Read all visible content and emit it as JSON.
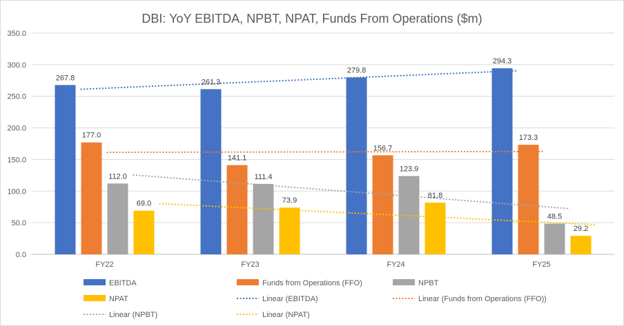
{
  "chart_data": {
    "type": "bar",
    "title": "DBI: YoY EBITDA, NPBT, NPAT, Funds From Operations ($m)",
    "categories": [
      "FY22",
      "FY23",
      "FY24",
      "FY25"
    ],
    "ylim": [
      0,
      350
    ],
    "yticks": [
      "0.0",
      "50.0",
      "100.0",
      "150.0",
      "200.0",
      "250.0",
      "300.0",
      "350.0"
    ],
    "grid": true,
    "legend_position": "bottom",
    "series": [
      {
        "name": "EBITDA",
        "color": "#4472C4",
        "values": [
          267.8,
          261.3,
          279.8,
          294.3
        ],
        "labels": [
          "267.8",
          "261.3",
          "279.8",
          "294.3"
        ]
      },
      {
        "name": "Funds from Operations (FFO)",
        "color": "#ED7D31",
        "values": [
          177.0,
          141.1,
          156.7,
          173.3
        ],
        "labels": [
          "177.0",
          "141.1",
          "156.7",
          "173.3"
        ]
      },
      {
        "name": "NPBT",
        "color": "#A5A5A5",
        "values": [
          112.0,
          111.4,
          123.9,
          48.5
        ],
        "labels": [
          "112.0",
          "111.4",
          "123.9",
          "48.5"
        ]
      },
      {
        "name": "NPAT",
        "color": "#FFC000",
        "values": [
          69.0,
          73.9,
          81.8,
          29.2
        ],
        "labels": [
          "69.0",
          "73.9",
          "81.8",
          "29.2"
        ]
      }
    ],
    "trendlines": [
      {
        "name": "Linear (EBITDA)",
        "series": 0,
        "color": "#4472C4"
      },
      {
        "name": "Linear (Funds from Operations (FFO))",
        "series": 1,
        "color": "#ED7D31"
      },
      {
        "name": "Linear (NPBT)",
        "series": 2,
        "color": "#A5A5A5"
      },
      {
        "name": "Linear (NPAT)",
        "series": 3,
        "color": "#FFC000"
      }
    ]
  }
}
